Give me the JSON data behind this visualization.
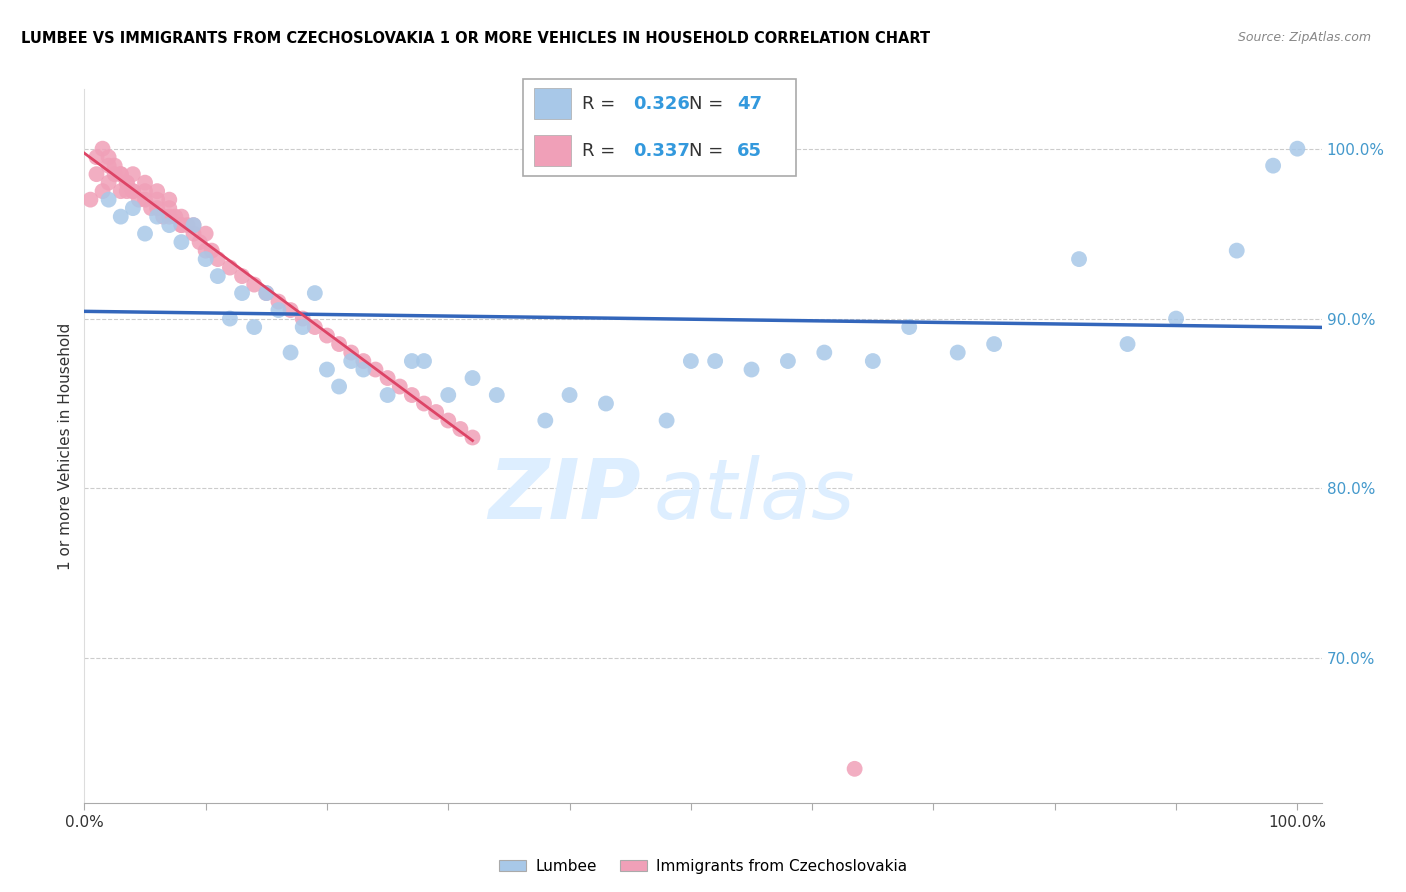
{
  "title": "LUMBEE VS IMMIGRANTS FROM CZECHOSLOVAKIA 1 OR MORE VEHICLES IN HOUSEHOLD CORRELATION CHART",
  "source": "Source: ZipAtlas.com",
  "ylabel": "1 or more Vehicles in Household",
  "xlim": [
    0.0,
    1.02
  ],
  "ylim": [
    0.615,
    1.035
  ],
  "yticks": [
    0.7,
    0.8,
    0.9,
    1.0
  ],
  "ytick_labels": [
    "70.0%",
    "80.0%",
    "90.0%",
    "100.0%"
  ],
  "xticks": [
    0.0,
    0.1,
    0.2,
    0.3,
    0.4,
    0.5,
    0.6,
    0.7,
    0.8,
    0.9,
    1.0
  ],
  "xtick_labels": [
    "0.0%",
    "",
    "",
    "",
    "",
    "",
    "",
    "",
    "",
    "",
    "100.0%"
  ],
  "lumbee_R": 0.326,
  "lumbee_N": 47,
  "czech_R": 0.337,
  "czech_N": 65,
  "lumbee_color": "#a8c8e8",
  "lumbee_line_color": "#3366bb",
  "czech_color": "#f0a0b8",
  "czech_line_color": "#dd4466",
  "watermark_top": "ZIP",
  "watermark_bot": "atlas",
  "watermark_color": "#ddeeff",
  "lumbee_x": [
    0.02,
    0.03,
    0.04,
    0.05,
    0.06,
    0.07,
    0.08,
    0.09,
    0.1,
    0.11,
    0.12,
    0.13,
    0.14,
    0.15,
    0.16,
    0.17,
    0.18,
    0.19,
    0.2,
    0.21,
    0.22,
    0.23,
    0.25,
    0.27,
    0.28,
    0.3,
    0.32,
    0.34,
    0.38,
    0.4,
    0.43,
    0.48,
    0.52,
    0.55,
    0.58,
    0.61,
    0.65,
    0.68,
    0.72,
    0.75,
    0.82,
    0.86,
    0.9,
    0.95,
    0.98,
    1.0,
    0.5
  ],
  "lumbee_y": [
    0.97,
    0.96,
    0.965,
    0.95,
    0.96,
    0.955,
    0.945,
    0.955,
    0.935,
    0.925,
    0.9,
    0.915,
    0.895,
    0.915,
    0.905,
    0.88,
    0.895,
    0.915,
    0.87,
    0.86,
    0.875,
    0.87,
    0.855,
    0.875,
    0.875,
    0.855,
    0.865,
    0.855,
    0.84,
    0.855,
    0.85,
    0.84,
    0.875,
    0.87,
    0.875,
    0.88,
    0.875,
    0.895,
    0.88,
    0.885,
    0.935,
    0.885,
    0.9,
    0.94,
    0.99,
    1.0,
    0.875
  ],
  "czech_x": [
    0.005,
    0.01,
    0.01,
    0.015,
    0.02,
    0.02,
    0.025,
    0.03,
    0.03,
    0.035,
    0.035,
    0.04,
    0.04,
    0.045,
    0.05,
    0.05,
    0.055,
    0.06,
    0.06,
    0.065,
    0.07,
    0.07,
    0.075,
    0.08,
    0.08,
    0.085,
    0.09,
    0.09,
    0.095,
    0.1,
    0.1,
    0.105,
    0.11,
    0.12,
    0.13,
    0.14,
    0.15,
    0.16,
    0.17,
    0.18,
    0.19,
    0.2,
    0.21,
    0.22,
    0.23,
    0.24,
    0.25,
    0.26,
    0.27,
    0.28,
    0.29,
    0.3,
    0.31,
    0.32,
    0.015,
    0.02,
    0.025,
    0.03,
    0.035,
    0.04,
    0.05,
    0.06,
    0.07,
    0.08,
    0.635
  ],
  "czech_y": [
    0.97,
    0.985,
    0.995,
    0.975,
    0.98,
    0.99,
    0.985,
    0.975,
    0.985,
    0.975,
    0.98,
    0.975,
    0.985,
    0.97,
    0.975,
    0.98,
    0.965,
    0.97,
    0.975,
    0.96,
    0.965,
    0.97,
    0.96,
    0.955,
    0.96,
    0.955,
    0.95,
    0.955,
    0.945,
    0.94,
    0.95,
    0.94,
    0.935,
    0.93,
    0.925,
    0.92,
    0.915,
    0.91,
    0.905,
    0.9,
    0.895,
    0.89,
    0.885,
    0.88,
    0.875,
    0.87,
    0.865,
    0.86,
    0.855,
    0.85,
    0.845,
    0.84,
    0.835,
    0.83,
    1.0,
    0.995,
    0.99,
    0.985,
    0.98,
    0.975,
    0.97,
    0.965,
    0.96,
    0.955,
    0.635
  ]
}
